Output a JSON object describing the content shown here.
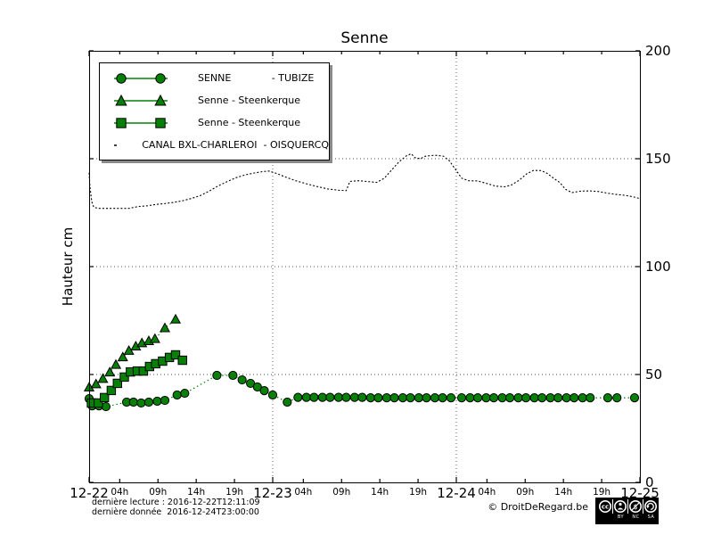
{
  "title": "Senne",
  "ylabel": "Hauteur cm",
  "legend": {
    "items": [
      {
        "label": "SENNE             - TUBIZE",
        "marker": "circle"
      },
      {
        "label": "Senne - Steenkerque",
        "marker": "triangle"
      },
      {
        "label": "Senne - Steenkerque",
        "marker": "square"
      },
      {
        "label": "CANAL BXL-CHARLEROI  - OISQUERCQ",
        "marker": "line"
      }
    ]
  },
  "footer": {
    "line1": "dernière lecture : 2016-12-22T12:11:09",
    "line2": "dernière donnée  2016-12-24T23:00:00",
    "credit": "© DroitDeRegard.be",
    "license": {
      "by": "BY",
      "nc": "NC",
      "sa": "SA"
    }
  },
  "colors": {
    "series_green": "#068006",
    "marker_edge": "#000000",
    "canal_black": "#000000",
    "grid": "#555555"
  },
  "chart_data": {
    "type": "line",
    "title": "Senne",
    "ylabel": "Hauteur cm",
    "x_unit": "hours since 2016-12-22 00:00",
    "xlim": [
      0,
      72
    ],
    "ylim": [
      0,
      200
    ],
    "yticks": [
      0,
      50,
      100,
      150,
      200
    ],
    "day_tick_hours": [
      0,
      24,
      48,
      72
    ],
    "day_labels": [
      "12-22",
      "12-23",
      "12-24",
      "12-25"
    ],
    "hour_tick_labels": [
      "04h",
      "09h",
      "14h",
      "19h"
    ],
    "hour_tick_offsets": [
      4,
      9,
      14,
      19
    ],
    "grid": "dotted",
    "legend_position": "upper-left",
    "series": [
      {
        "name": "SENNE - TUBIZE",
        "marker": "circle",
        "linestyle": "dotted",
        "points": [
          [
            0.0,
            38.8
          ],
          [
            0.4,
            35.5
          ],
          [
            1.3,
            35.5
          ],
          [
            2.2,
            35.1
          ],
          [
            4.9,
            37.2
          ],
          [
            5.8,
            37.2
          ],
          [
            6.8,
            36.8
          ],
          [
            7.8,
            37.2
          ],
          [
            8.9,
            37.6
          ],
          [
            9.9,
            38.0
          ],
          [
            11.5,
            40.5
          ],
          [
            12.5,
            41.3
          ],
          [
            16.7,
            49.6
          ],
          [
            18.8,
            49.6
          ],
          [
            20.0,
            47.5
          ],
          [
            21.1,
            45.9
          ],
          [
            22.0,
            44.2
          ],
          [
            22.9,
            42.5
          ],
          [
            24.0,
            40.5
          ],
          [
            25.9,
            37.2
          ],
          [
            27.3,
            39.4
          ],
          [
            28.4,
            39.4
          ],
          [
            29.4,
            39.4
          ],
          [
            30.5,
            39.4
          ],
          [
            31.5,
            39.4
          ],
          [
            32.6,
            39.4
          ],
          [
            33.6,
            39.4
          ],
          [
            34.7,
            39.4
          ],
          [
            35.7,
            39.4
          ],
          [
            36.8,
            39.2
          ],
          [
            37.8,
            39.2
          ],
          [
            38.9,
            39.2
          ],
          [
            39.9,
            39.2
          ],
          [
            41.0,
            39.2
          ],
          [
            42.0,
            39.2
          ],
          [
            43.1,
            39.2
          ],
          [
            44.1,
            39.2
          ],
          [
            45.2,
            39.2
          ],
          [
            46.2,
            39.2
          ],
          [
            47.3,
            39.2
          ],
          [
            48.7,
            39.2
          ],
          [
            49.8,
            39.2
          ],
          [
            50.8,
            39.2
          ],
          [
            51.9,
            39.2
          ],
          [
            52.9,
            39.2
          ],
          [
            54.0,
            39.2
          ],
          [
            55.0,
            39.2
          ],
          [
            56.1,
            39.2
          ],
          [
            57.1,
            39.2
          ],
          [
            58.2,
            39.2
          ],
          [
            59.2,
            39.2
          ],
          [
            60.3,
            39.2
          ],
          [
            61.3,
            39.2
          ],
          [
            62.4,
            39.2
          ],
          [
            63.4,
            39.2
          ],
          [
            64.5,
            39.2
          ],
          [
            65.5,
            39.2
          ],
          [
            67.8,
            39.2
          ],
          [
            69.0,
            39.2
          ],
          [
            71.3,
            39.2
          ]
        ]
      },
      {
        "name": "Senne - Steenkerque",
        "marker": "triangle",
        "linestyle": "dotted",
        "points": [
          [
            0.0,
            44.0
          ],
          [
            0.9,
            45.5
          ],
          [
            1.8,
            48.0
          ],
          [
            2.7,
            51.0
          ],
          [
            3.5,
            54.5
          ],
          [
            4.4,
            58.0
          ],
          [
            5.2,
            61.0
          ],
          [
            6.1,
            63.0
          ],
          [
            6.9,
            64.5
          ],
          [
            7.8,
            65.5
          ],
          [
            8.6,
            66.5
          ],
          [
            9.9,
            71.5
          ],
          [
            11.3,
            75.5
          ]
        ]
      },
      {
        "name": "Senne - Steenkerque",
        "marker": "square",
        "linestyle": "dotted",
        "points": [
          [
            0.3,
            36.8
          ],
          [
            1.2,
            36.8
          ],
          [
            2.0,
            39.3
          ],
          [
            2.9,
            42.6
          ],
          [
            3.7,
            45.9
          ],
          [
            4.6,
            48.8
          ],
          [
            5.4,
            51.2
          ],
          [
            6.3,
            51.6
          ],
          [
            7.1,
            51.6
          ],
          [
            7.9,
            53.7
          ],
          [
            8.7,
            55.0
          ],
          [
            9.6,
            56.2
          ],
          [
            10.5,
            57.9
          ],
          [
            11.3,
            59.1
          ],
          [
            12.2,
            56.6
          ]
        ]
      },
      {
        "name": "CANAL BXL-CHARLEROI - OISQUERCQ",
        "marker": "none",
        "linestyle": "dotted",
        "points": [
          [
            0.0,
            143.5
          ],
          [
            0.1,
            137.0
          ],
          [
            0.35,
            130.0
          ],
          [
            0.6,
            127.5
          ],
          [
            1.2,
            127.0
          ],
          [
            2.0,
            127.0
          ],
          [
            3.0,
            127.0
          ],
          [
            4.0,
            127.0
          ],
          [
            5.2,
            127.0
          ],
          [
            6.4,
            127.8
          ],
          [
            7.6,
            128.2
          ],
          [
            8.7,
            128.8
          ],
          [
            9.9,
            129.2
          ],
          [
            11.1,
            129.8
          ],
          [
            12.2,
            130.5
          ],
          [
            13.4,
            131.6
          ],
          [
            14.6,
            133.0
          ],
          [
            15.7,
            135.0
          ],
          [
            16.9,
            137.5
          ],
          [
            18.1,
            139.5
          ],
          [
            19.2,
            141.2
          ],
          [
            20.4,
            142.5
          ],
          [
            21.6,
            143.4
          ],
          [
            22.7,
            144.0
          ],
          [
            23.5,
            144.3
          ],
          [
            24.5,
            143.2
          ],
          [
            25.6,
            141.6
          ],
          [
            27.0,
            139.8
          ],
          [
            28.4,
            138.4
          ],
          [
            29.8,
            137.1
          ],
          [
            31.2,
            136.0
          ],
          [
            32.6,
            135.4
          ],
          [
            33.6,
            135.2
          ],
          [
            34.1,
            139.5
          ],
          [
            35.3,
            139.8
          ],
          [
            36.5,
            139.4
          ],
          [
            37.6,
            139.0
          ],
          [
            38.6,
            141.0
          ],
          [
            39.6,
            145.0
          ],
          [
            40.5,
            148.5
          ],
          [
            41.5,
            151.4
          ],
          [
            42.1,
            152.3
          ],
          [
            42.6,
            150.5
          ],
          [
            43.3,
            150.0
          ],
          [
            44.0,
            151.2
          ],
          [
            45.2,
            151.6
          ],
          [
            46.3,
            151.2
          ],
          [
            47.1,
            149.0
          ],
          [
            47.9,
            145.0
          ],
          [
            48.7,
            141.0
          ],
          [
            49.6,
            139.8
          ],
          [
            50.8,
            139.7
          ],
          [
            52.0,
            138.5
          ],
          [
            53.1,
            137.3
          ],
          [
            54.3,
            137.0
          ],
          [
            55.2,
            137.8
          ],
          [
            56.2,
            140.0
          ],
          [
            57.2,
            143.0
          ],
          [
            58.1,
            144.6
          ],
          [
            59.1,
            144.5
          ],
          [
            59.9,
            143.2
          ],
          [
            60.7,
            141.0
          ],
          [
            61.5,
            139.0
          ],
          [
            62.3,
            135.8
          ],
          [
            63.1,
            134.3
          ],
          [
            64.3,
            135.0
          ],
          [
            65.5,
            135.1
          ],
          [
            66.6,
            134.8
          ],
          [
            67.8,
            134.0
          ],
          [
            69.0,
            133.4
          ],
          [
            70.1,
            133.0
          ],
          [
            71.3,
            132.2
          ],
          [
            71.9,
            131.6
          ]
        ]
      }
    ]
  }
}
